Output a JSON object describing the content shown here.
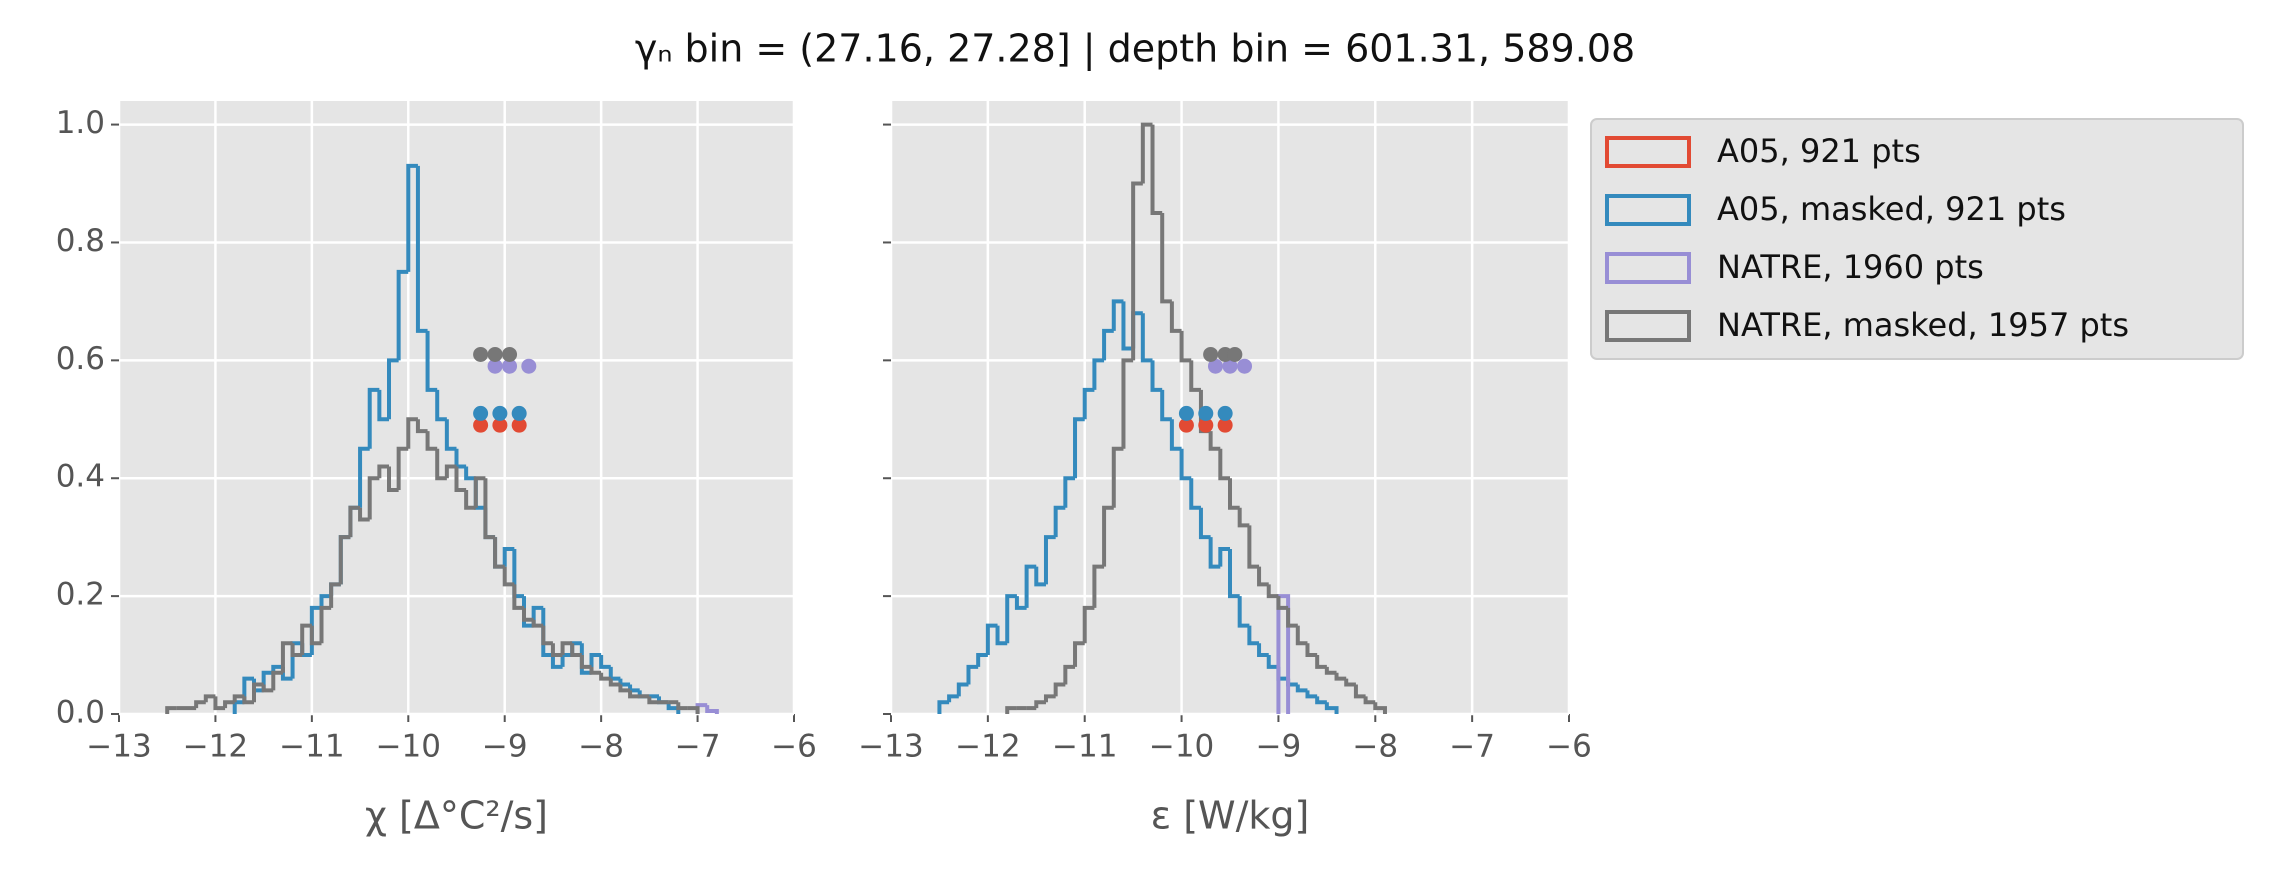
{
  "title": "γₙ bin = (27.16, 27.28] | depth bin = 601.31, 589.08",
  "chart_data": [
    {
      "type": "histogram",
      "x_label": "χ [Δ°C²/s]",
      "xlim": [
        -13,
        -6
      ],
      "ylim": [
        0,
        1.04
      ],
      "xticks": [
        {
          "value": -13,
          "label": "−13"
        },
        {
          "value": -12,
          "label": "−12"
        },
        {
          "value": -11,
          "label": "−11"
        },
        {
          "value": -10,
          "label": "−10"
        },
        {
          "value": -9,
          "label": "−9"
        },
        {
          "value": -8,
          "label": "−8"
        },
        {
          "value": -7,
          "label": "−7"
        },
        {
          "value": -6,
          "label": "−6"
        }
      ],
      "yticks": [
        {
          "value": 0,
          "label": "0.0"
        },
        0.2,
        0.4,
        0.6,
        0.8,
        {
          "value": 1,
          "label": "1.0"
        }
      ],
      "grid": true,
      "series": [
        {
          "color": "#E24A33",
          "dots": {
            "x": [
              -9.25,
              -9.05,
              -8.85
            ],
            "y": [
              0.49,
              0.49,
              0.49
            ]
          }
        },
        {
          "color": "#348ABD",
          "bins": [
            -11.8,
            -11.7,
            -11.6,
            -11.5,
            -11.4,
            -11.3,
            -11.2,
            -11.1,
            -11.0,
            -10.9,
            -10.8,
            -10.7,
            -10.6,
            -10.5,
            -10.4,
            -10.3,
            -10.2,
            -10.1,
            -10.0,
            -9.9,
            -9.8,
            -9.7,
            -9.6,
            -9.5,
            -9.4,
            -9.3,
            -9.2,
            -9.1,
            -9.0,
            -8.9,
            -8.8,
            -8.7,
            -8.6,
            -8.5,
            -8.4,
            -8.3,
            -8.2,
            -8.1,
            -8.0,
            -7.9,
            -7.8,
            -7.7,
            -7.6,
            -7.5,
            -7.4,
            -7.3,
            -7.2
          ],
          "values": [
            0.02,
            0.06,
            0.04,
            0.07,
            0.08,
            0.06,
            0.12,
            0.1,
            0.18,
            0.2,
            0.22,
            0.3,
            0.35,
            0.45,
            0.55,
            0.5,
            0.6,
            0.75,
            0.93,
            0.65,
            0.55,
            0.5,
            0.45,
            0.42,
            0.4,
            0.35,
            0.3,
            0.25,
            0.28,
            0.2,
            0.15,
            0.18,
            0.1,
            0.08,
            0.1,
            0.12,
            0.07,
            0.1,
            0.08,
            0.06,
            0.05,
            0.04,
            0.03,
            0.03,
            0.02,
            0.01
          ],
          "dots": {
            "x": [
              -9.25,
              -9.05,
              -8.85
            ],
            "y": [
              0.51,
              0.51,
              0.51
            ]
          }
        },
        {
          "color": "#988ED5",
          "bins": [
            -7.0,
            -6.9,
            -6.8
          ],
          "values": [
            0.015,
            0.005
          ],
          "dots": {
            "x": [
              -9.1,
              -8.95,
              -8.75
            ],
            "y": [
              0.59,
              0.59,
              0.59
            ]
          }
        },
        {
          "color": "#777777",
          "bins": [
            -12.5,
            -12.4,
            -12.3,
            -12.2,
            -12.1,
            -12.0,
            -11.9,
            -11.8,
            -11.7,
            -11.6,
            -11.5,
            -11.4,
            -11.3,
            -11.2,
            -11.1,
            -11.0,
            -10.9,
            -10.8,
            -10.7,
            -10.6,
            -10.5,
            -10.4,
            -10.3,
            -10.2,
            -10.1,
            -10.0,
            -9.9,
            -9.8,
            -9.7,
            -9.6,
            -9.5,
            -9.4,
            -9.3,
            -9.2,
            -9.1,
            -9.0,
            -8.9,
            -8.8,
            -8.7,
            -8.6,
            -8.5,
            -8.4,
            -8.3,
            -8.2,
            -8.1,
            -8.0,
            -7.9,
            -7.8,
            -7.7,
            -7.6,
            -7.5,
            -7.4,
            -7.3,
            -7.2,
            -7.1,
            -7.0
          ],
          "values": [
            0.01,
            0.01,
            0.01,
            0.02,
            0.03,
            0.01,
            0.02,
            0.03,
            0.02,
            0.05,
            0.04,
            0.07,
            0.12,
            0.1,
            0.15,
            0.12,
            0.18,
            0.22,
            0.3,
            0.35,
            0.33,
            0.4,
            0.42,
            0.38,
            0.45,
            0.5,
            0.48,
            0.45,
            0.4,
            0.42,
            0.38,
            0.35,
            0.4,
            0.3,
            0.25,
            0.22,
            0.18,
            0.16,
            0.15,
            0.12,
            0.1,
            0.12,
            0.1,
            0.08,
            0.07,
            0.06,
            0.05,
            0.04,
            0.03,
            0.03,
            0.02,
            0.02,
            0.02,
            0.01,
            0.01
          ],
          "dots": {
            "x": [
              -9.25,
              -9.1,
              -8.95
            ],
            "y": [
              0.61,
              0.61,
              0.61
            ]
          }
        }
      ]
    },
    {
      "type": "histogram",
      "x_label": "ε [W/kg]",
      "xlim": [
        -13,
        -6
      ],
      "ylim": [
        0,
        1.04
      ],
      "xticks": [
        {
          "value": -13,
          "label": "−13"
        },
        {
          "value": -12,
          "label": "−12"
        },
        {
          "value": -11,
          "label": "−11"
        },
        {
          "value": -10,
          "label": "−10"
        },
        {
          "value": -9,
          "label": "−9"
        },
        {
          "value": -8,
          "label": "−8"
        },
        {
          "value": -7,
          "label": "−7"
        },
        {
          "value": -6,
          "label": "−6"
        }
      ],
      "yticks": [
        0,
        0.2,
        0.4,
        0.6,
        0.8,
        1
      ],
      "grid": true,
      "legend": "outside right",
      "series": [
        {
          "name": "A05, 921 pts",
          "color": "#E24A33",
          "dots": {
            "x": [
              -9.95,
              -9.75,
              -9.55
            ],
            "y": [
              0.49,
              0.49,
              0.49
            ]
          }
        },
        {
          "name": "A05, masked,  921 pts",
          "color": "#348ABD",
          "bins": [
            -12.5,
            -12.4,
            -12.3,
            -12.2,
            -12.1,
            -12.0,
            -11.9,
            -11.8,
            -11.7,
            -11.6,
            -11.5,
            -11.4,
            -11.3,
            -11.2,
            -11.1,
            -11.0,
            -10.9,
            -10.8,
            -10.7,
            -10.6,
            -10.5,
            -10.4,
            -10.3,
            -10.2,
            -10.1,
            -10.0,
            -9.9,
            -9.8,
            -9.7,
            -9.6,
            -9.5,
            -9.4,
            -9.3,
            -9.2,
            -9.1,
            -9.0,
            -8.9,
            -8.8,
            -8.7,
            -8.6,
            -8.5,
            -8.4
          ],
          "values": [
            0.02,
            0.03,
            0.05,
            0.08,
            0.1,
            0.15,
            0.12,
            0.2,
            0.18,
            0.25,
            0.22,
            0.3,
            0.35,
            0.4,
            0.5,
            0.55,
            0.6,
            0.65,
            0.7,
            0.62,
            0.68,
            0.6,
            0.55,
            0.5,
            0.45,
            0.4,
            0.35,
            0.3,
            0.25,
            0.28,
            0.2,
            0.15,
            0.12,
            0.1,
            0.08,
            0.06,
            0.05,
            0.04,
            0.03,
            0.02,
            0.01
          ],
          "dots": {
            "x": [
              -9.95,
              -9.75,
              -9.55
            ],
            "y": [
              0.51,
              0.51,
              0.51
            ]
          }
        },
        {
          "name": "NATRE, 1960 pts",
          "color": "#988ED5",
          "bins": [
            -9.0,
            -8.9
          ],
          "values": [
            0.2
          ],
          "dots": {
            "x": [
              -9.65,
              -9.5,
              -9.35
            ],
            "y": [
              0.59,
              0.59,
              0.59
            ]
          }
        },
        {
          "name": "NATRE, masked,  1957 pts",
          "color": "#777777",
          "bins": [
            -11.8,
            -11.7,
            -11.6,
            -11.5,
            -11.4,
            -11.3,
            -11.2,
            -11.1,
            -11.0,
            -10.9,
            -10.8,
            -10.7,
            -10.6,
            -10.5,
            -10.4,
            -10.3,
            -10.2,
            -10.1,
            -10.0,
            -9.9,
            -9.8,
            -9.7,
            -9.6,
            -9.5,
            -9.4,
            -9.3,
            -9.2,
            -9.1,
            -9.0,
            -8.9,
            -8.8,
            -8.7,
            -8.6,
            -8.5,
            -8.4,
            -8.3,
            -8.2,
            -8.1,
            -8.0,
            -7.9
          ],
          "values": [
            0.01,
            0.01,
            0.01,
            0.02,
            0.03,
            0.05,
            0.08,
            0.12,
            0.18,
            0.25,
            0.35,
            0.45,
            0.6,
            0.9,
            1.0,
            0.85,
            0.7,
            0.65,
            0.6,
            0.55,
            0.48,
            0.45,
            0.4,
            0.35,
            0.32,
            0.25,
            0.22,
            0.2,
            0.18,
            0.15,
            0.12,
            0.1,
            0.08,
            0.07,
            0.06,
            0.05,
            0.03,
            0.02,
            0.01
          ],
          "dots": {
            "x": [
              -9.7,
              -9.55,
              -9.45
            ],
            "y": [
              0.61,
              0.61,
              0.61
            ]
          }
        }
      ]
    }
  ]
}
